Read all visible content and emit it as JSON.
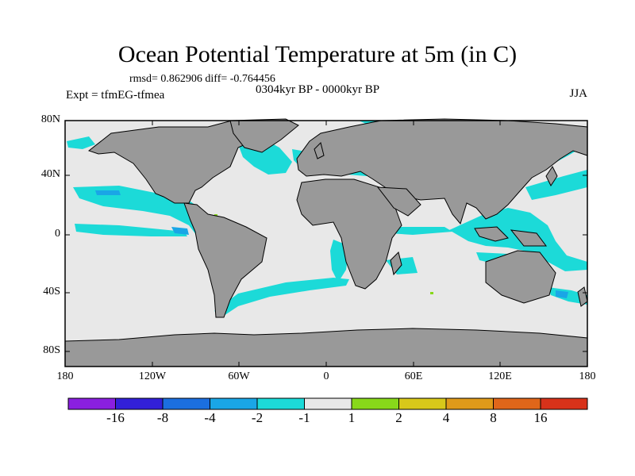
{
  "title": "Ocean Potential Temperature at 5m (in C)",
  "stats": {
    "text": "rmsd= 0.862906 diff= -0.764456"
  },
  "period": "0304kyr BP - 0000kyr BP",
  "experiment": "Expt = tfmEG-tfmea",
  "season": "JJA",
  "lat_labels": [
    "80N",
    "40N",
    "0",
    "40S",
    "80S"
  ],
  "lon_labels": [
    "180",
    "120W",
    "60W",
    "0",
    "60E",
    "120E",
    "180"
  ],
  "colorbar": {
    "tick_labels": [
      "-16",
      "-8",
      "-4",
      "-2",
      "-1",
      "1",
      "2",
      "4",
      "8",
      "16"
    ],
    "colors": [
      "#8a1fe0",
      "#3220d8",
      "#1b6fe0",
      "#1aa6e6",
      "#1cdad8",
      "#e8e8e8",
      "#88d81a",
      "#d8c81a",
      "#e09a1a",
      "#e0661a",
      "#d8321a"
    ]
  },
  "colors": {
    "ocean": "#e8e8e8",
    "land": "#999999",
    "anomaly_cool": "#1cdad8",
    "anomaly_med": "#1aa6e6",
    "anomaly_warm": "#88d81a"
  }
}
